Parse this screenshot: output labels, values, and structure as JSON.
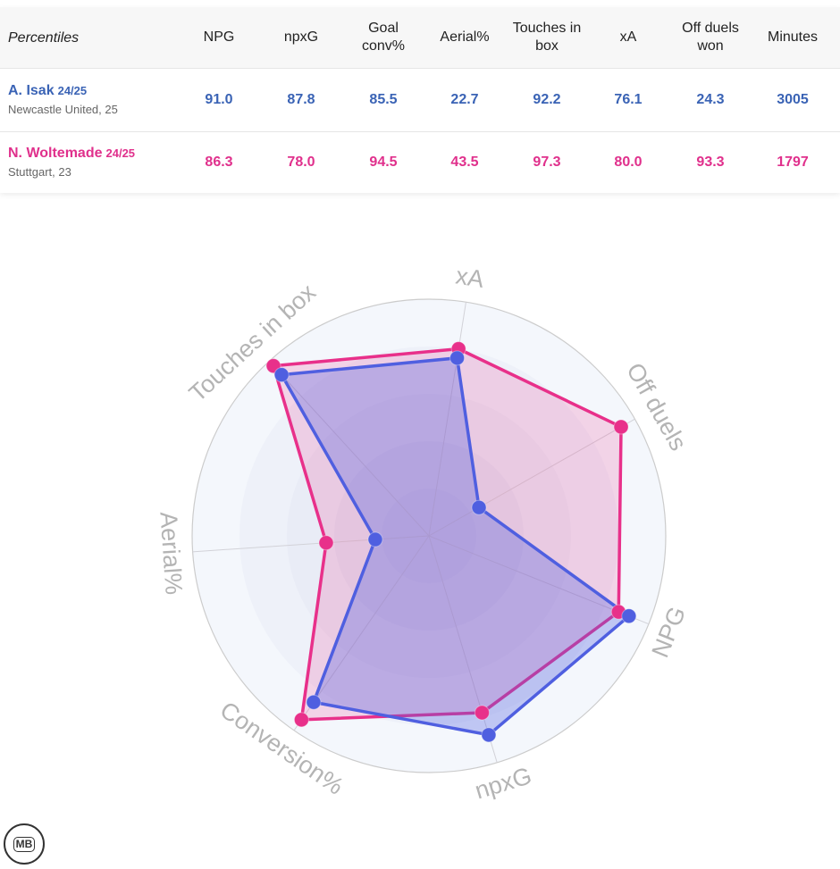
{
  "table": {
    "header_title": "Percentiles",
    "columns": [
      "NPG",
      "npxG",
      "Goal conv%",
      "Aerial%",
      "Touches in box",
      "xA",
      "Off duels won",
      "Minutes"
    ],
    "rows": [
      {
        "name": "A. Isak",
        "season": "24/25",
        "team": "Newcastle United, 25",
        "values": [
          "91.0",
          "87.8",
          "85.5",
          "22.7",
          "92.2",
          "76.1",
          "24.3",
          "3005"
        ],
        "color": "#3a63b5"
      },
      {
        "name": "N. Woltemade",
        "season": "24/25",
        "team": "Stuttgart, 23",
        "values": [
          "86.3",
          "78.0",
          "94.5",
          "43.5",
          "97.3",
          "80.0",
          "93.3",
          "1797"
        ],
        "color": "#e0308c"
      }
    ]
  },
  "chart_data": {
    "type": "radar",
    "axes": [
      "xA",
      "Off duels",
      "NPG",
      "npxG",
      "Conversion%",
      "Aerial%",
      "Touches in box"
    ],
    "range": [
      0,
      100
    ],
    "series": [
      {
        "name": "A. Isak",
        "values": [
          76.1,
          24.3,
          91.0,
          87.8,
          85.5,
          22.7,
          92.2
        ],
        "color": "#4f5fe0"
      },
      {
        "name": "N. Woltemade",
        "values": [
          80.0,
          93.3,
          86.3,
          78.0,
          94.5,
          43.5,
          97.3
        ],
        "color": "#e8308a"
      }
    ],
    "grid": true,
    "legend": "none"
  },
  "logo_text": "MB"
}
